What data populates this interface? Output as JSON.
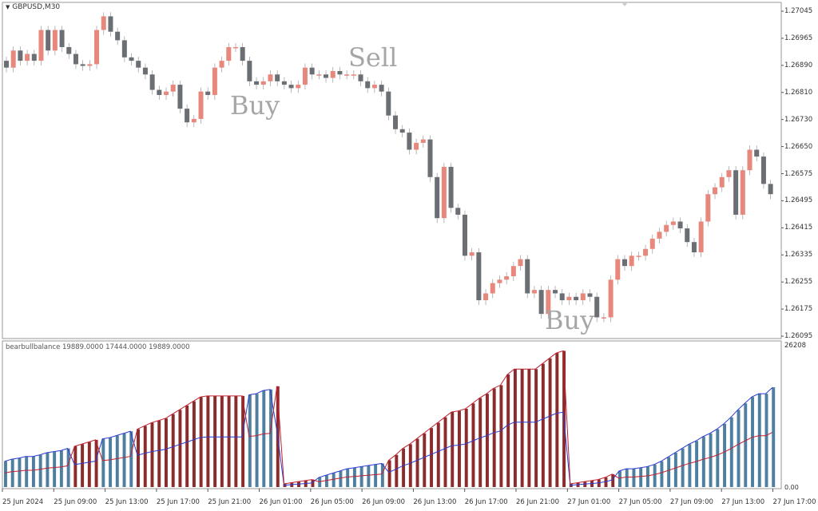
{
  "symbol_title": "GBPUSD,M30",
  "indicator_title": "bearbullbalance 19889.0000 17444.0000 19889.0000",
  "price_axis": [
    "1.27045",
    "1.26965",
    "1.26890",
    "1.26810",
    "1.26730",
    "1.26650",
    "1.26575",
    "1.26495",
    "1.26415",
    "1.26335",
    "1.26255",
    "1.26175",
    "1.26095"
  ],
  "indicator_axis": {
    "max": "26208",
    "min": "0.00"
  },
  "time_axis": [
    "25 Jun 2024",
    "25 Jun 09:00",
    "25 Jun 13:00",
    "25 Jun 17:00",
    "25 Jun 21:00",
    "26 Jun 01:00",
    "26 Jun 05:00",
    "26 Jun 09:00",
    "26 Jun 13:00",
    "26 Jun 17:00",
    "26 Jun 21:00",
    "27 Jun 01:00",
    "27 Jun 05:00",
    "27 Jun 09:00",
    "27 Jun 13:00",
    "27 Jun 17:00"
  ],
  "annotations": {
    "buy1": "Buy",
    "sell": "Sell",
    "buy2": "Buy"
  },
  "colors": {
    "bull": "#e8877b",
    "bear": "#6b6e73",
    "bar_red": "#8b2b2b",
    "bar_blue": "#4f7fa0",
    "line_blue": "#2a3bd0",
    "line_red": "#c02030"
  },
  "chart_data": {
    "type": "candlestick",
    "y_min": 1.26095,
    "y_max": 1.27045,
    "candles_close": [
      1.2688,
      1.2693,
      1.269,
      1.2692,
      1.269,
      1.2699,
      1.2693,
      1.2699,
      1.2694,
      1.2692,
      1.2689,
      1.26885,
      1.2689,
      1.2699,
      1.2703,
      1.26985,
      1.2696,
      1.2691,
      1.269,
      1.2688,
      1.2686,
      1.26815,
      1.268,
      1.2681,
      1.2683,
      1.2676,
      1.2672,
      1.2673,
      1.2681,
      1.268,
      1.2688,
      1.269,
      1.2694,
      1.2694,
      1.269,
      1.2684,
      1.2683,
      1.2684,
      1.2686,
      1.2684,
      1.2683,
      1.2682,
      1.2683,
      1.2688,
      1.2686,
      1.2686,
      1.2685,
      1.2687,
      1.2686,
      1.2686,
      1.2686,
      1.2684,
      1.2682,
      1.2683,
      1.2681,
      1.2674,
      1.267,
      1.2669,
      1.2664,
      1.2666,
      1.2667,
      1.2656,
      1.2644,
      1.2659,
      1.2647,
      1.2645,
      1.2633,
      1.2634,
      1.262,
      1.2622,
      1.2625,
      1.2626,
      1.2627,
      1.263,
      1.2632,
      1.2622,
      1.2623,
      1.2616,
      1.2623,
      1.2622,
      1.262,
      1.2621,
      1.262,
      1.2622,
      1.2621,
      1.2615,
      1.2615,
      1.2626,
      1.2632,
      1.263,
      1.2633,
      1.2633,
      1.2635,
      1.2638,
      1.264,
      1.2642,
      1.2643,
      1.2641,
      1.2637,
      1.2634,
      1.2643,
      1.2651,
      1.2653,
      1.2656,
      1.2658,
      1.2645,
      1.2658,
      1.2664,
      1.2662,
      1.2654,
      1.2651
    ],
    "indicator_bars_top": [
      4800,
      5200,
      5400,
      5700,
      5700,
      6000,
      6400,
      6600,
      6800,
      7200,
      7600,
      8000,
      8400,
      8800,
      9000,
      9200,
      9600,
      10000,
      10400,
      10800,
      11400,
      12000,
      12400,
      12800,
      13600,
      14400,
      15200,
      16000,
      16800,
      17000,
      17000,
      17000,
      17000,
      17000,
      17000,
      17200,
      17400,
      18000,
      18200,
      18800,
      600,
      800,
      1000,
      1200,
      1400,
      1800,
      2200,
      2600,
      3000,
      3400,
      3600,
      3800,
      4000,
      4200,
      4400,
      5000,
      6000,
      7200,
      8000,
      9000,
      10000,
      11000,
      12000,
      13000,
      14000,
      14200,
      14600,
      15600,
      16600,
      17400,
      18400,
      19000,
      21000,
      22000,
      22000,
      22000,
      22000,
      23000,
      24000,
      25000,
      25400,
      600,
      800,
      1000,
      1200,
      1400,
      1800,
      2400,
      3000,
      3400,
      3400,
      3600,
      3800,
      4200,
      4800,
      5600,
      6400,
      7200,
      8000,
      8600,
      9400,
      10000,
      10800,
      11800,
      13000,
      14400,
      15600,
      16800,
      17400,
      17400,
      18600
    ],
    "indicator_bar_color": [
      "b",
      "b",
      "b",
      "b",
      "b",
      "b",
      "b",
      "b",
      "b",
      "b",
      "r",
      "r",
      "r",
      "r",
      "b",
      "b",
      "b",
      "b",
      "b",
      "r",
      "r",
      "r",
      "r",
      "r",
      "r",
      "r",
      "r",
      "r",
      "r",
      "r",
      "r",
      "r",
      "r",
      "r",
      "r",
      "b",
      "b",
      "b",
      "b",
      "r",
      "r",
      "r",
      "r",
      "r",
      "r",
      "b",
      "b",
      "b",
      "b",
      "b",
      "b",
      "b",
      "b",
      "b",
      "b",
      "r",
      "r",
      "r",
      "r",
      "r",
      "r",
      "r",
      "r",
      "r",
      "r",
      "r",
      "r",
      "r",
      "r",
      "r",
      "r",
      "r",
      "r",
      "r",
      "r",
      "r",
      "r",
      "r",
      "r",
      "r",
      "r",
      "r",
      "r",
      "r",
      "r",
      "r",
      "r",
      "r",
      "b",
      "b",
      "b",
      "b",
      "b",
      "b",
      "b",
      "b",
      "b",
      "b",
      "b",
      "b",
      "b",
      "b",
      "b",
      "b",
      "b",
      "b",
      "b",
      "b",
      "b",
      "b",
      "b"
    ]
  }
}
